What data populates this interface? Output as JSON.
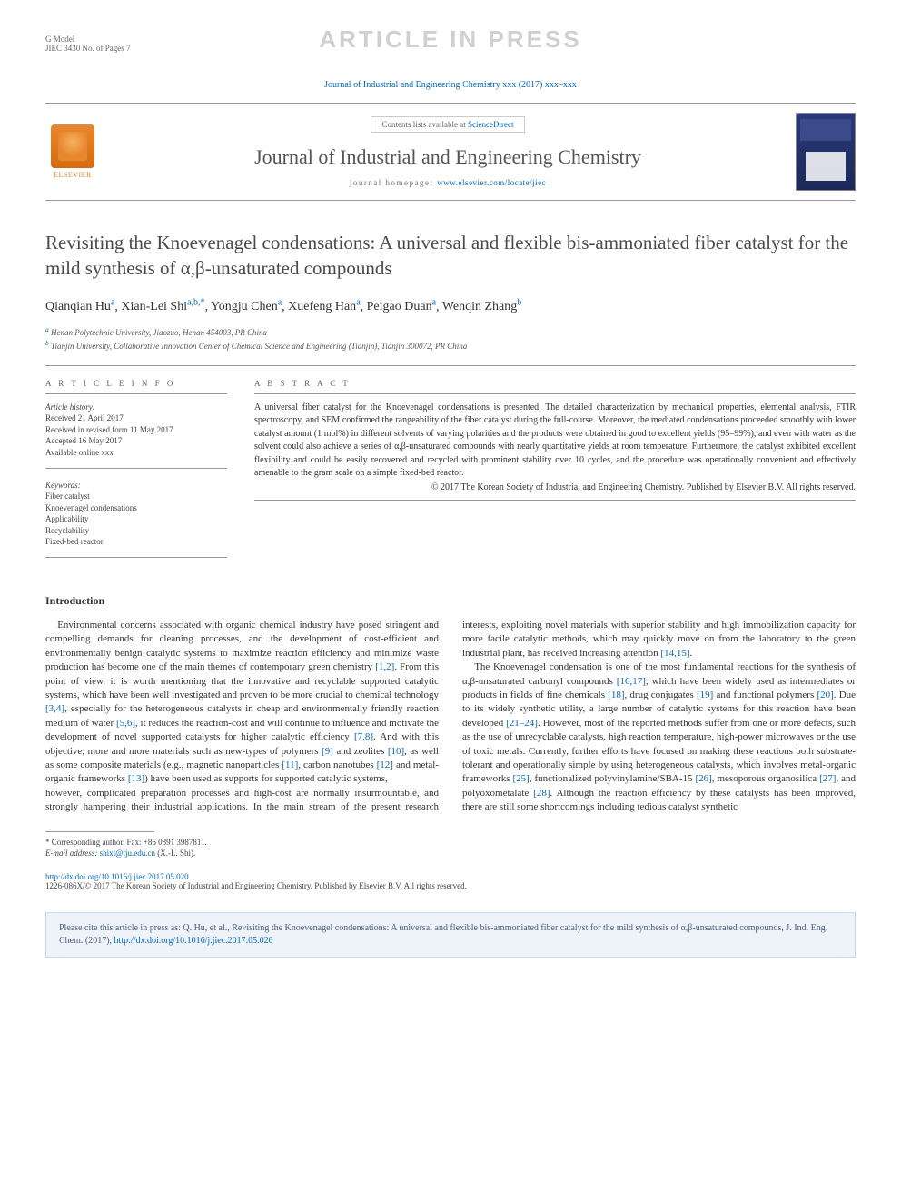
{
  "gmodel": {
    "label": "G Model",
    "code": "JIEC 3430 No. of Pages 7"
  },
  "watermark": "ARTICLE IN PRESS",
  "journal_ref": "Journal of Industrial and Engineering Chemistry xxx (2017) xxx–xxx",
  "header": {
    "contents_prefix": "Contents lists available at ",
    "contents_link": "ScienceDirect",
    "journal_name": "Journal of Industrial and Engineering Chemistry",
    "homepage_prefix": "journal homepage: ",
    "homepage_link": "www.elsevier.com/locate/jiec",
    "elsevier_label": "ELSEVIER"
  },
  "title": "Revisiting the Knoevenagel condensations: A universal and flexible bis-ammoniated fiber catalyst for the mild synthesis of α,β-unsaturated compounds",
  "authors": [
    {
      "name": "Qianqian Hu",
      "sup": "a"
    },
    {
      "name": "Xian-Lei Shi",
      "sup": "a,b,*"
    },
    {
      "name": "Yongju Chen",
      "sup": "a"
    },
    {
      "name": "Xuefeng Han",
      "sup": "a"
    },
    {
      "name": "Peigao Duan",
      "sup": "a"
    },
    {
      "name": "Wenqin Zhang",
      "sup": "b"
    }
  ],
  "affiliations": [
    {
      "sup": "a",
      "text": "Henan Polytechnic University, Jiaozuo, Henan 454003, PR China"
    },
    {
      "sup": "b",
      "text": "Tianjin University, Collaborative Innovation Center of Chemical Science and Engineering (Tianjin), Tianjin 300072, PR China"
    }
  ],
  "article_info": {
    "heading": "A R T I C L E   I N F O",
    "history_label": "Article history:",
    "history": [
      "Received 21 April 2017",
      "Received in revised form 11 May 2017",
      "Accepted 16 May 2017",
      "Available online xxx"
    ],
    "keywords_label": "Keywords:",
    "keywords": [
      "Fiber catalyst",
      "Knoevenagel condensations",
      "Applicability",
      "Recyclability",
      "Fixed-bed reactor"
    ]
  },
  "abstract": {
    "heading": "A B S T R A C T",
    "text": "A universal fiber catalyst for the Knoevenagel condensations is presented. The detailed characterization by mechanical properties, elemental analysis, FTIR spectroscopy, and SEM confirmed the rangeability of the fiber catalyst during the full-course. Moreover, the mediated condensations proceeded smoothly with lower catalyst amount (1 mol%) in different solvents of varying polarities and the products were obtained in good to excellent yields (95–99%), and even with water as the solvent could also achieve a series of α,β-unsaturated compounds with nearly quantitative yields at room temperature. Furthermore, the catalyst exhibited excellent flexibility and could be easily recovered and recycled with prominent stability over 10 cycles, and the procedure was operationally convenient and effectively amenable to the gram scale on a simple fixed-bed reactor.",
    "copyright": "© 2017 The Korean Society of Industrial and Engineering Chemistry. Published by Elsevier B.V. All rights reserved."
  },
  "intro_heading": "Introduction",
  "body_p1": "Environmental concerns associated with organic chemical industry have posed stringent and compelling demands for cleaning processes, and the development of cost-efficient and environmentally benign catalytic systems to maximize reaction efficiency and minimize waste production has become one of the main themes of contemporary green chemistry [1,2]. From this point of view, it is worth mentioning that the innovative and recyclable supported catalytic systems, which have been well investigated and proven to be more crucial to chemical technology [3,4], especially for the heterogeneous catalysts in cheap and environmentally friendly reaction medium of water [5,6], it reduces the reaction-cost and will continue to influence and motivate the development of novel supported catalysts for higher catalytic efficiency [7,8]. And with this objective, more and more materials such as new-types of polymers [9] and zeolites [10], as well as some composite materials (e.g., magnetic nanoparticles [11], carbon nanotubes [12] and metal-organic frameworks [13]) have been used as supports for supported catalytic systems,",
  "body_p2": "however, complicated preparation processes and high-cost are normally insurmountable, and strongly hampering their industrial applications. In the main stream of the present research interests, exploiting novel materials with superior stability and high immobilization capacity for more facile catalytic methods, which may quickly move on from the laboratory to the green industrial plant, has received increasing attention [14,15].",
  "body_p3": "The Knoevenagel condensation is one of the most fundamental reactions for the synthesis of α,β-unsaturated carbonyl compounds [16,17], which have been widely used as intermediates or products in fields of fine chemicals [18], drug conjugates [19] and functional polymers [20]. Due to its widely synthetic utility, a large number of catalytic systems for this reaction have been developed [21–24]. However, most of the reported methods suffer from one or more defects, such as the use of unrecyclable catalysts, high reaction temperature, high-power microwaves or the use of toxic metals. Currently, further efforts have focused on making these reactions both substrate-tolerant and operationally simple by using heterogeneous catalysts, which involves metal-organic frameworks [25], functionalized polyvinylamine/SBA-15 [26], mesoporous organosilica [27], and polyoxometalate [28]. Although the reaction efficiency by these catalysts has been improved, there are still some shortcomings including tedious catalyst synthetic",
  "footnotes": {
    "corresp": "* Corresponding author. Fax: +86 0391 3987811.",
    "email_label": "E-mail address: ",
    "email": "shixl@tju.edu.cn",
    "email_suffix": " (X.-L. Shi)."
  },
  "doi": {
    "link": "http://dx.doi.org/10.1016/j.jiec.2017.05.020",
    "issn_line": "1226-086X/© 2017 The Korean Society of Industrial and Engineering Chemistry. Published by Elsevier B.V. All rights reserved."
  },
  "cite_box": {
    "prefix": "Please cite this article in press as: Q. Hu, et al., Revisiting the Knoevenagel condensations: A universal and flexible bis-ammoniated fiber catalyst for the mild synthesis of α,β-unsaturated compounds, J. Ind. Eng. Chem. (2017), ",
    "link": "http://dx.doi.org/10.1016/j.jiec.2017.05.020"
  },
  "colors": {
    "link": "#0066cc",
    "watermark": "#d0d0d0",
    "text": "#333333",
    "citebox_bg": "#eef3f9",
    "citebox_border": "#c9d8ea"
  }
}
